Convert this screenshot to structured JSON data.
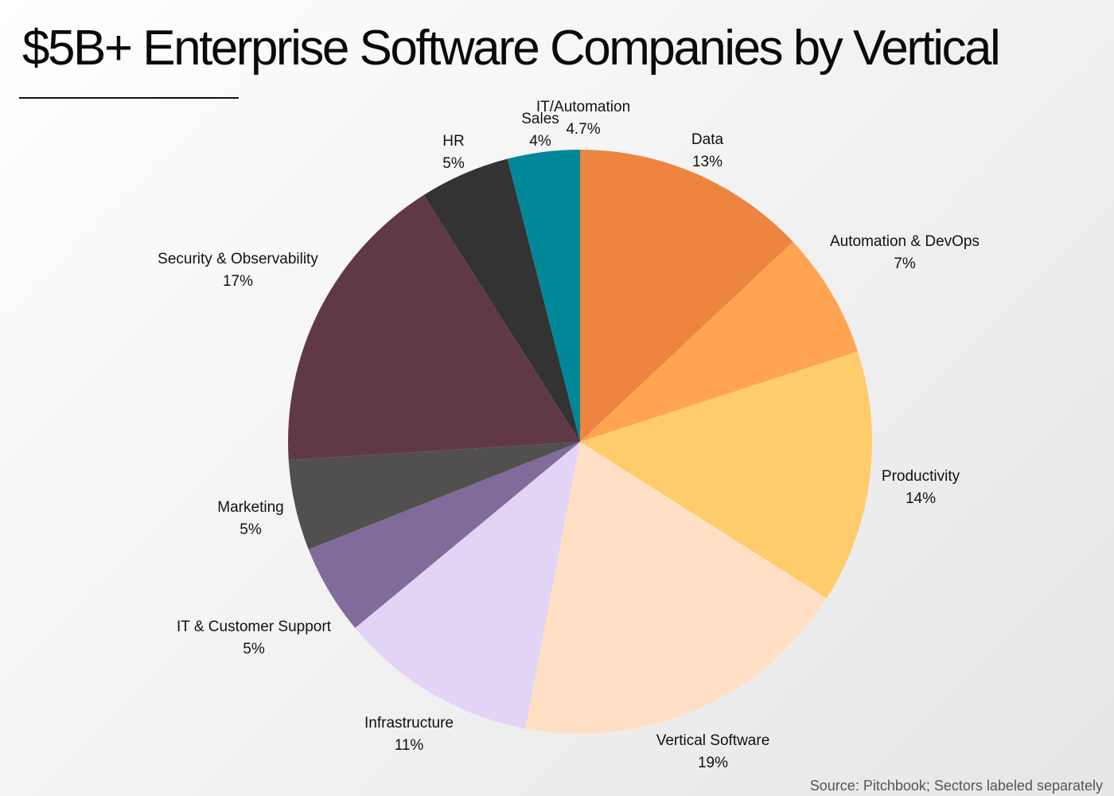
{
  "title": "$5B+ Enterprise Software Companies by Vertical",
  "source": "Source: Pitchbook; Sectors labeled separately",
  "chart_data": {
    "type": "pie",
    "title": "$5B+ Enterprise Software Companies by Vertical",
    "start_angle_deg": 0,
    "direction": "clockwise",
    "slices": [
      {
        "label": "Data",
        "value": 13,
        "value_label": "13%",
        "color": "#ED843F"
      },
      {
        "label": "Automation & DevOps",
        "value": 7,
        "value_label": "7%",
        "color": "#FFA552"
      },
      {
        "label": "Productivity",
        "value": 14,
        "value_label": "14%",
        "color": "#FFCC6C"
      },
      {
        "label": "Vertical Software",
        "value": 19,
        "value_label": "19%",
        "color": "#FFE0C4"
      },
      {
        "label": "Infrastructure",
        "value": 11,
        "value_label": "11%",
        "color": "#E2D4F4"
      },
      {
        "label": "IT & Customer Support",
        "value": 5,
        "value_label": "5%",
        "color": "#806B9B"
      },
      {
        "label": "Marketing",
        "value": 5,
        "value_label": "5%",
        "color": "#51504E"
      },
      {
        "label": "Security & Observability",
        "value": 17,
        "value_label": "17%",
        "color": "#613946"
      },
      {
        "label": "HR",
        "value": 5,
        "value_label": "5%",
        "color": "#333333"
      },
      {
        "label": "Sales",
        "value": 4,
        "value_label": "4%",
        "color": "#008899"
      },
      {
        "label": "IT/Automation",
        "value": 4.7,
        "value_label": "4.7%",
        "color": "#008899"
      }
    ]
  }
}
